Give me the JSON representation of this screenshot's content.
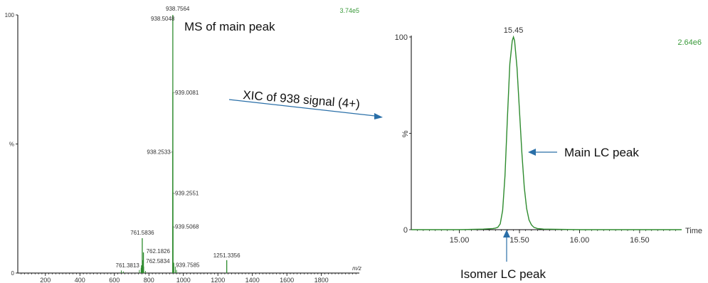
{
  "colors": {
    "trace": "#2e8b2e",
    "accent_green": "#3a9a3a",
    "arrow": "#2a6fa8",
    "axis": "#000000"
  },
  "chart_data": [
    {
      "type": "bar",
      "title": "",
      "xlabel": "m/z",
      "ylabel": "%",
      "xlim": [
        40,
        2020
      ],
      "ylim": [
        0,
        100
      ],
      "x_ticks": [
        200,
        400,
        600,
        800,
        1000,
        1200,
        1400,
        1600,
        1800
      ],
      "y_ticks": [
        {
          "value": 0,
          "label": "0"
        },
        {
          "value": 50,
          "label": "%"
        },
        {
          "value": 100,
          "label": "100"
        }
      ],
      "intensity_label": "3.74e5",
      "peaks": [
        {
          "mz": 938.7564,
          "rel": 100,
          "label": "938.7564"
        },
        {
          "mz": 938.5048,
          "rel": 96,
          "label": "938.5048"
        },
        {
          "mz": 939.0081,
          "rel": 70,
          "label": "939.0081"
        },
        {
          "mz": 938.2533,
          "rel": 47,
          "label": "938.2533"
        },
        {
          "mz": 939.2551,
          "rel": 31,
          "label": "939.2551"
        },
        {
          "mz": 939.5068,
          "rel": 18,
          "label": "939.5068"
        },
        {
          "mz": 939.7585,
          "rel": 4,
          "label": "939.7585"
        },
        {
          "mz": 761.5836,
          "rel": 13.5,
          "label": "761.5836"
        },
        {
          "mz": 762.1826,
          "rel": 8,
          "label": "762.1826"
        },
        {
          "mz": 762.5834,
          "rel": 5,
          "label": "762.5834"
        },
        {
          "mz": 761.3813,
          "rel": 3,
          "label": "761.3813"
        },
        {
          "mz": 1251.3356,
          "rel": 5,
          "label": "1251.3356"
        }
      ],
      "minor_peaks": [
        {
          "mz": 640,
          "rel": 1.0
        },
        {
          "mz": 652,
          "rel": 0.6
        },
        {
          "mz": 745,
          "rel": 1.2
        },
        {
          "mz": 755,
          "rel": 2.0
        },
        {
          "mz": 770,
          "rel": 2.5
        },
        {
          "mz": 780,
          "rel": 0.8
        },
        {
          "mz": 953,
          "rel": 2.5
        },
        {
          "mz": 960,
          "rel": 1.2
        }
      ]
    },
    {
      "type": "line",
      "title": "",
      "xlabel": "Time",
      "ylabel": "%",
      "xlim": [
        14.6,
        16.85
      ],
      "ylim": [
        0,
        100
      ],
      "x_ticks": [
        {
          "value": 15.0,
          "label": "15.00"
        },
        {
          "value": 15.5,
          "label": "15.50"
        },
        {
          "value": 16.0,
          "label": "16.00"
        },
        {
          "value": 16.5,
          "label": "16.50"
        }
      ],
      "y_ticks": [
        {
          "value": 0,
          "label": "0"
        },
        {
          "value": 50,
          "label": "%"
        },
        {
          "value": 100,
          "label": "100"
        }
      ],
      "intensity_label": "2.64e6",
      "apex_label": "15.45",
      "series": [
        {
          "x": [
            14.6,
            15.0,
            15.2,
            15.28,
            15.3,
            15.32,
            15.34,
            15.36,
            15.38,
            15.4,
            15.42,
            15.44,
            15.45,
            15.46,
            15.48,
            15.5,
            15.52,
            15.54,
            15.56,
            15.58,
            15.6,
            15.62,
            15.65,
            15.7,
            16.0,
            16.85
          ],
          "y": [
            0,
            0,
            0.3,
            0.6,
            0.8,
            1.2,
            3,
            10,
            28,
            58,
            86,
            98,
            100,
            98,
            84,
            62,
            40,
            22,
            11,
            5,
            2.5,
            1.2,
            0.6,
            0.3,
            0,
            0
          ]
        }
      ]
    }
  ],
  "annotations": {
    "ms_main": "MS of main peak",
    "xic": "XIC of 938 signal (4+)",
    "main_lc": "Main LC peak",
    "isomer_lc": "Isomer LC peak"
  }
}
